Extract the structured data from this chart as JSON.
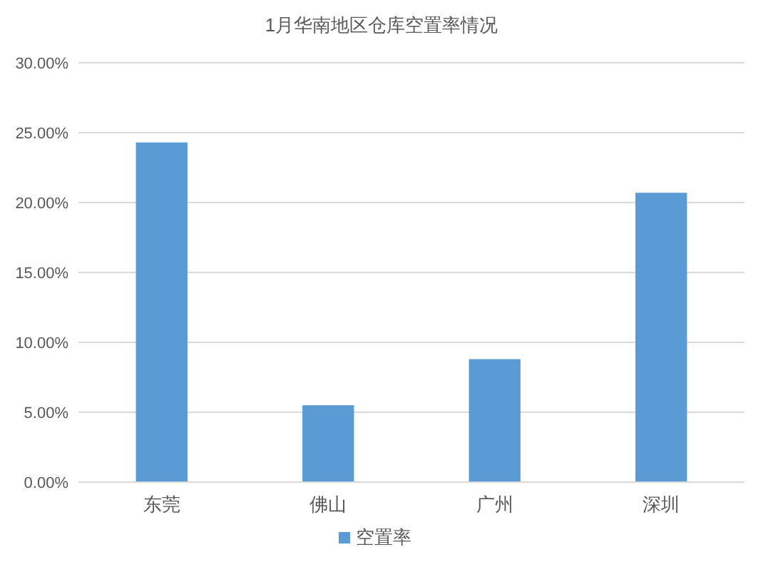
{
  "chart_data": {
    "type": "bar",
    "title": "1月华南地区仓库空置率情况",
    "categories": [
      "东莞",
      "佛山",
      "广州",
      "深圳"
    ],
    "series": [
      {
        "name": "空置率",
        "color": "#5b9bd5",
        "values": [
          24.3,
          5.5,
          8.8,
          20.7
        ]
      }
    ],
    "ylim": [
      0,
      30
    ],
    "yticks": [
      {
        "value": 0,
        "label": "0.00%"
      },
      {
        "value": 5,
        "label": "5.00%"
      },
      {
        "value": 10,
        "label": "10.00%"
      },
      {
        "value": 15,
        "label": "15.00%"
      },
      {
        "value": 20,
        "label": "20.00%"
      },
      {
        "value": 25,
        "label": "25.00%"
      },
      {
        "value": 30,
        "label": "30.00%"
      }
    ],
    "grid": "y",
    "legend": "bottom"
  }
}
